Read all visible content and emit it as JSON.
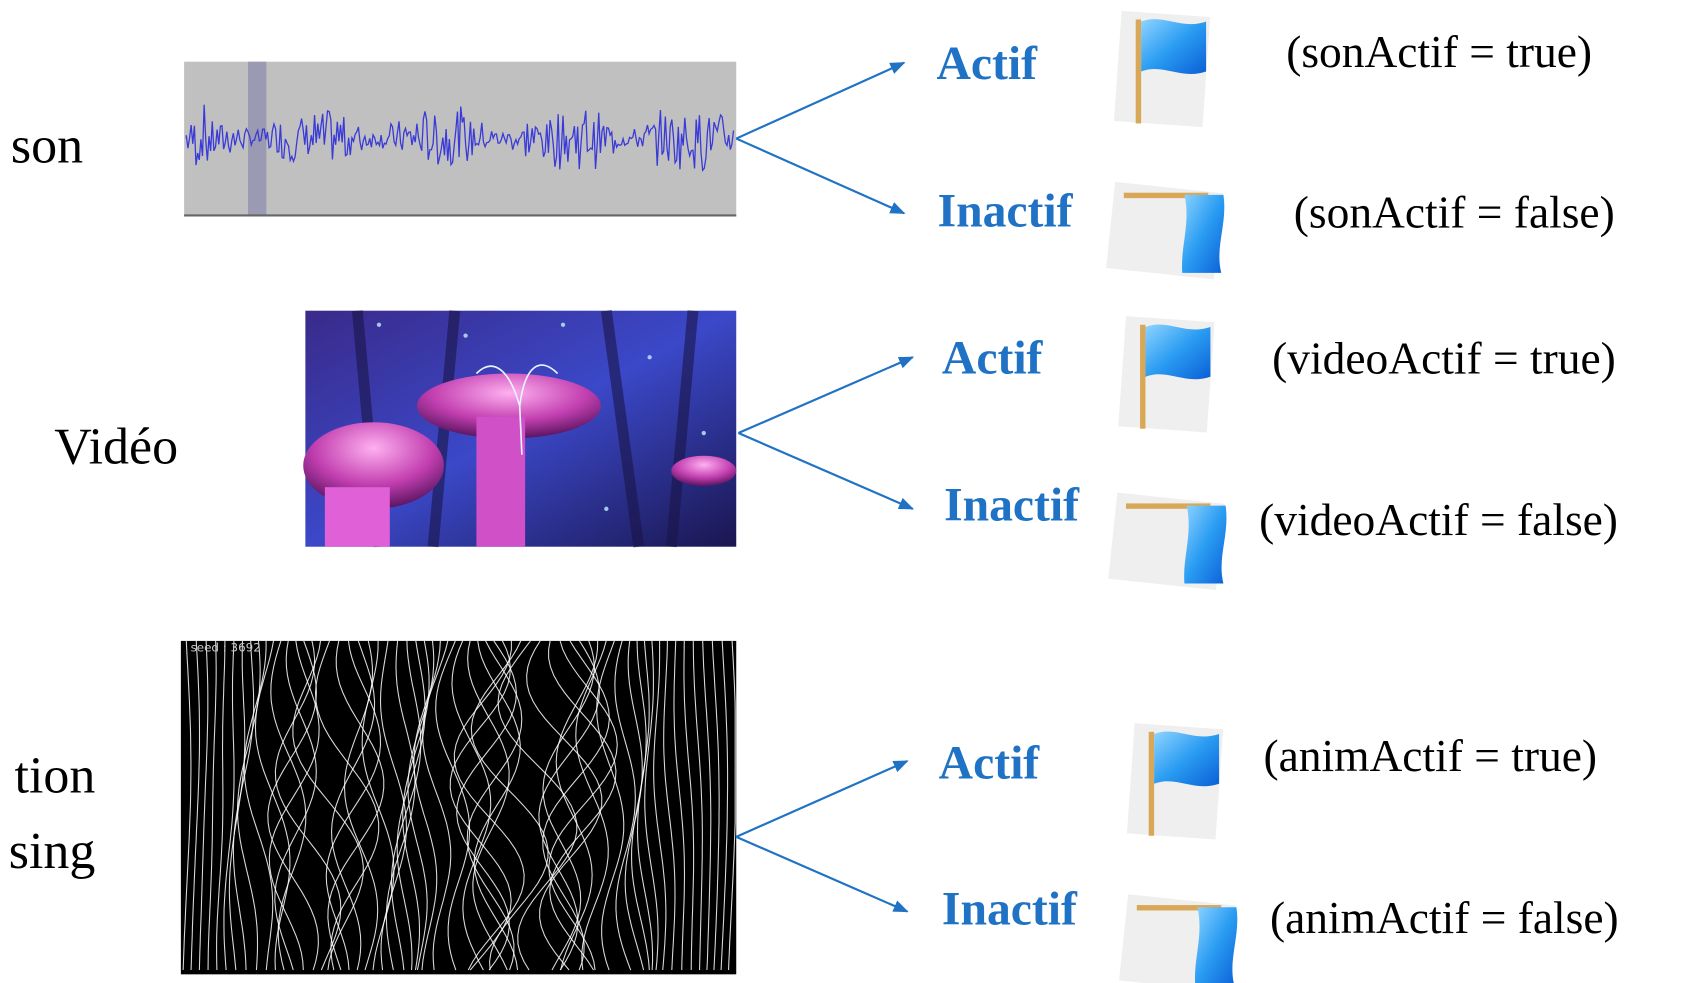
{
  "rows": [
    {
      "label": [
        "son"
      ],
      "branches": [
        {
          "state": "Actif",
          "code": "(sonActif = true)"
        },
        {
          "state": "Inactif",
          "code": "(sonActif = false)"
        }
      ]
    },
    {
      "label": [
        "Vidéo"
      ],
      "branches": [
        {
          "state": "Actif",
          "code": "(videoActif = true)"
        },
        {
          "state": "Inactif",
          "code": "(videoActif = false)"
        }
      ]
    },
    {
      "label": [
        "tion",
        "sing"
      ],
      "image_caption": "seed : 3692",
      "branches": [
        {
          "state": "Actif",
          "code": "(animActif = true)"
        },
        {
          "state": "Inactif",
          "code": "(animActif = false)"
        }
      ]
    }
  ]
}
